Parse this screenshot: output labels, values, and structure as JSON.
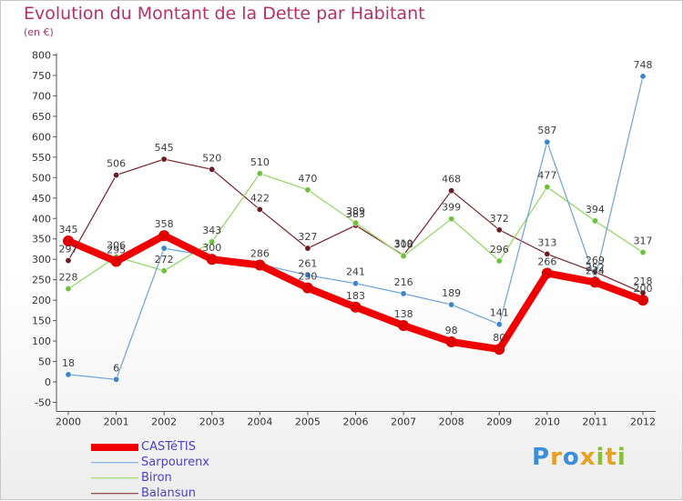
{
  "header": {
    "title": "Evolution du Montant de la Dette par Habitant",
    "unit": "(en €)"
  },
  "brand": {
    "letters": [
      {
        "char": "P",
        "color": "#3a8fd8"
      },
      {
        "char": "r",
        "color": "#e8a020"
      },
      {
        "char": "o",
        "color": "#3a8fd8"
      },
      {
        "char": "x",
        "color": "#e8a020"
      },
      {
        "char": "i",
        "color": "#88c03a"
      },
      {
        "char": "t",
        "color": "#e8a020"
      },
      {
        "char": "i",
        "color": "#88c03a"
      }
    ]
  },
  "chart_data": {
    "type": "line",
    "title": "Evolution du Montant de la Dette par Habitant",
    "subtitle": "(en €)",
    "x": [
      "2000",
      "2001",
      "2002",
      "2003",
      "2004",
      "2005",
      "2006",
      "2007",
      "2008",
      "2009",
      "2010",
      "2011",
      "2012"
    ],
    "yticks": [
      -50,
      0,
      50,
      100,
      150,
      200,
      250,
      300,
      350,
      400,
      450,
      500,
      550,
      600,
      650,
      700,
      750,
      800
    ],
    "ylim": [
      -50,
      800
    ],
    "grid": false,
    "legend": "bottom-left",
    "series": [
      {
        "name": "Balansun",
        "color": "#7a1f28",
        "point_color": "#6b1a22",
        "width": 1.2,
        "marker": 3.2,
        "values": [
          297,
          506,
          545,
          520,
          422,
          327,
          383,
          310,
          468,
          372,
          313,
          269,
          218
        ]
      },
      {
        "name": "Biron",
        "color": "#8fd65a",
        "point_color": "#6cc23a",
        "width": 1.2,
        "marker": 3.2,
        "values": [
          228,
          306,
          272,
          343,
          510,
          470,
          389,
          308,
          399,
          296,
          477,
          394,
          317
        ]
      },
      {
        "name": "Sarpourenx",
        "color": "#6aa3d8",
        "point_color": "#3d86cc",
        "width": 1.2,
        "marker": 3.2,
        "values": [
          18,
          6,
          327,
          307,
          288,
          261,
          241,
          216,
          189,
          141,
          587,
          252,
          748
        ]
      },
      {
        "name": "CASTéTIS",
        "color": "#f00000",
        "point_color": "#e00000",
        "width": 8,
        "marker": 6,
        "values": [
          345,
          295,
          358,
          300,
          286,
          230,
          183,
          138,
          98,
          80,
          266,
          244,
          200
        ]
      }
    ],
    "labels": {
      "CASTéTIS": [
        "345",
        "295",
        "358",
        "300",
        "286",
        "230",
        "183",
        "138",
        "98",
        "80",
        "266",
        "244",
        "200"
      ],
      "Sarpourenx": [
        "18",
        "6",
        "",
        "",
        "",
        "261",
        "241",
        "216",
        "189",
        "141",
        "587",
        "252",
        "748"
      ],
      "Biron": [
        "228",
        "306",
        "272",
        "343",
        "510",
        "470",
        "389",
        "308",
        "399",
        "296",
        "477",
        "394",
        "317"
      ],
      "Balansun": [
        "297",
        "506",
        "545",
        "520",
        "422",
        "327",
        "383",
        "310",
        "468",
        "372",
        "313",
        "269",
        "218"
      ]
    }
  }
}
